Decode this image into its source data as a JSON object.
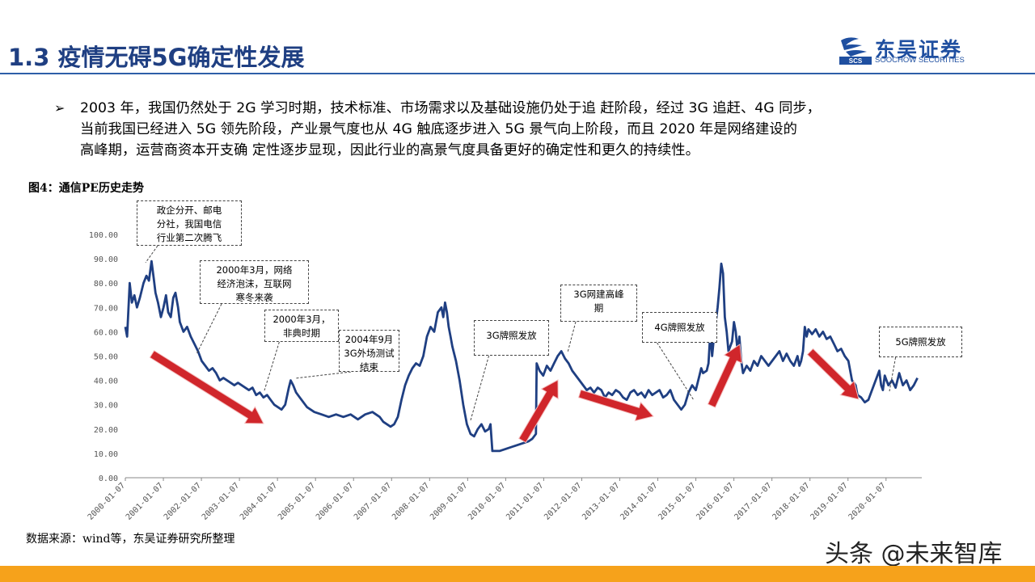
{
  "header": {
    "title": "1.3 疫情无碍5G确定性发展",
    "logo": {
      "name_cn": "东吴证券",
      "name_en": "SOOCHOW SECURITIES",
      "badge": "SCS",
      "icon": "soochow-logo-icon"
    }
  },
  "body": {
    "bullet_icon": "➢",
    "bullet_lines": [
      "2003 年，我国仍然处于 2G 学习时期，技术标准、市场需求以及基础设施仍处于追 赶阶段，经过 3G 追赶、4G 同步，",
      "当前我国已经进入 5G 领先阶段，产业景气度也从 4G 触底逐步进入 5G 景气向上阶段，而且 2020 年是网络建设的",
      "高峰期，运营商资本开支确 定性逐步显现，因此行业的高景气度具备更好的确定性和更久的持续性。"
    ]
  },
  "figure": {
    "title": "图4：通信PE历史走势",
    "source": "数据来源：wind等，东吴证券研究所整理"
  },
  "watermark": "头条 @未来智库",
  "colors": {
    "title": "#1f3f82",
    "line": "#1f3f82",
    "arrow": "#d0262b",
    "footer": "#f6a21b"
  },
  "chart_data": {
    "type": "line",
    "ylim": [
      0,
      100
    ],
    "y_ticks": [
      "0.00",
      "10.00",
      "20.00",
      "30.00",
      "40.00",
      "50.00",
      "60.00",
      "70.00",
      "80.00",
      "90.00",
      "100.00"
    ],
    "x_ticks": [
      "2000-01-07",
      "2001-01-07",
      "2002-01-07",
      "2003-01-07",
      "2004-01-07",
      "2005-01-07",
      "2006-01-07",
      "2007-01-07",
      "2008-01-07",
      "2009-01-07",
      "2010-01-07",
      "2011-01-07",
      "2012-01-07",
      "2013-01-07",
      "2014-01-07",
      "2015-01-07",
      "2016-01-07",
      "2017-01-07",
      "2018-01-07",
      "2019-01-07",
      "2020-01-07"
    ],
    "series": [
      {
        "values": [
          [
            2000.0,
            62
          ],
          [
            2000.05,
            58
          ],
          [
            2000.12,
            80
          ],
          [
            2000.18,
            72
          ],
          [
            2000.25,
            75
          ],
          [
            2000.32,
            70
          ],
          [
            2000.4,
            74
          ],
          [
            2000.5,
            80
          ],
          [
            2000.58,
            83
          ],
          [
            2000.65,
            81
          ],
          [
            2000.72,
            89
          ],
          [
            2000.78,
            82
          ],
          [
            2000.83,
            76
          ],
          [
            2000.9,
            72
          ],
          [
            2000.98,
            66
          ],
          [
            2001.05,
            70
          ],
          [
            2001.12,
            75
          ],
          [
            2001.18,
            68
          ],
          [
            2001.25,
            66
          ],
          [
            2001.32,
            74
          ],
          [
            2001.38,
            76
          ],
          [
            2001.45,
            70
          ],
          [
            2001.5,
            64
          ],
          [
            2001.6,
            60
          ],
          [
            2001.7,
            62
          ],
          [
            2001.8,
            58
          ],
          [
            2001.9,
            55
          ],
          [
            2002.0,
            52
          ],
          [
            2002.1,
            48
          ],
          [
            2002.2,
            46
          ],
          [
            2002.3,
            44
          ],
          [
            2002.4,
            45
          ],
          [
            2002.5,
            43
          ],
          [
            2002.6,
            40
          ],
          [
            2002.7,
            41
          ],
          [
            2002.8,
            40
          ],
          [
            2002.9,
            39
          ],
          [
            2003.0,
            38
          ],
          [
            2003.1,
            39
          ],
          [
            2003.2,
            38
          ],
          [
            2003.3,
            37
          ],
          [
            2003.4,
            36
          ],
          [
            2003.5,
            37
          ],
          [
            2003.6,
            34
          ],
          [
            2003.7,
            35
          ],
          [
            2003.8,
            33
          ],
          [
            2003.9,
            34
          ],
          [
            2004.0,
            32
          ],
          [
            2004.1,
            30
          ],
          [
            2004.2,
            29
          ],
          [
            2004.3,
            28
          ],
          [
            2004.4,
            30
          ],
          [
            2004.5,
            37
          ],
          [
            2004.55,
            40
          ],
          [
            2004.62,
            38
          ],
          [
            2004.7,
            35
          ],
          [
            2004.8,
            33
          ],
          [
            2004.9,
            31
          ],
          [
            2005.0,
            29
          ],
          [
            2005.2,
            27
          ],
          [
            2005.4,
            26
          ],
          [
            2005.6,
            25
          ],
          [
            2005.8,
            26
          ],
          [
            2006.0,
            25
          ],
          [
            2006.2,
            26
          ],
          [
            2006.4,
            24
          ],
          [
            2006.6,
            26
          ],
          [
            2006.8,
            27
          ],
          [
            2007.0,
            25
          ],
          [
            2007.1,
            23
          ],
          [
            2007.2,
            22
          ],
          [
            2007.3,
            21
          ],
          [
            2007.4,
            22
          ],
          [
            2007.5,
            25
          ],
          [
            2007.6,
            32
          ],
          [
            2007.7,
            38
          ],
          [
            2007.8,
            42
          ],
          [
            2007.9,
            45
          ],
          [
            2008.0,
            47
          ],
          [
            2008.1,
            46
          ],
          [
            2008.2,
            50
          ],
          [
            2008.3,
            58
          ],
          [
            2008.4,
            62
          ],
          [
            2008.5,
            60
          ],
          [
            2008.6,
            68
          ],
          [
            2008.7,
            70
          ],
          [
            2008.75,
            66
          ],
          [
            2008.8,
            72
          ],
          [
            2008.85,
            68
          ],
          [
            2008.9,
            62
          ],
          [
            2008.95,
            58
          ],
          [
            2009.0,
            54
          ],
          [
            2009.1,
            48
          ],
          [
            2009.2,
            40
          ],
          [
            2009.3,
            30
          ],
          [
            2009.4,
            22
          ],
          [
            2009.5,
            18
          ],
          [
            2009.6,
            17
          ],
          [
            2009.7,
            20
          ],
          [
            2009.8,
            22
          ],
          [
            2009.9,
            19
          ],
          [
            2010.0,
            20
          ],
          [
            2010.05,
            22
          ],
          [
            2010.1,
            11
          ],
          [
            2010.3,
            11
          ],
          [
            2010.5,
            12
          ],
          [
            2010.7,
            13
          ],
          [
            2010.9,
            14
          ],
          [
            2011.1,
            15
          ],
          [
            2011.2,
            16
          ],
          [
            2011.3,
            18
          ],
          [
            2011.32,
            47
          ],
          [
            2011.4,
            44
          ],
          [
            2011.5,
            42
          ],
          [
            2011.6,
            46
          ],
          [
            2011.7,
            44
          ],
          [
            2011.8,
            47
          ],
          [
            2011.9,
            50
          ],
          [
            2012.0,
            52
          ],
          [
            2012.1,
            49
          ],
          [
            2012.2,
            47
          ],
          [
            2012.3,
            44
          ],
          [
            2012.4,
            42
          ],
          [
            2012.5,
            40
          ],
          [
            2012.6,
            38
          ],
          [
            2012.7,
            36
          ],
          [
            2012.8,
            37
          ],
          [
            2012.9,
            35
          ],
          [
            2013.0,
            37
          ],
          [
            2013.1,
            36
          ],
          [
            2013.2,
            33
          ],
          [
            2013.3,
            35
          ],
          [
            2013.4,
            34
          ],
          [
            2013.5,
            36
          ],
          [
            2013.6,
            35
          ],
          [
            2013.7,
            33
          ],
          [
            2013.8,
            32
          ],
          [
            2013.9,
            35
          ],
          [
            2014.0,
            36
          ],
          [
            2014.1,
            34
          ],
          [
            2014.2,
            35
          ],
          [
            2014.3,
            33
          ],
          [
            2014.4,
            36
          ],
          [
            2014.5,
            34
          ],
          [
            2014.6,
            35
          ],
          [
            2014.7,
            36
          ],
          [
            2014.8,
            33
          ],
          [
            2014.9,
            34
          ],
          [
            2015.0,
            36
          ],
          [
            2015.1,
            32
          ],
          [
            2015.2,
            30
          ],
          [
            2015.3,
            28
          ],
          [
            2015.4,
            30
          ],
          [
            2015.5,
            35
          ],
          [
            2015.6,
            38
          ],
          [
            2015.7,
            36
          ],
          [
            2015.8,
            42
          ],
          [
            2015.85,
            45
          ],
          [
            2015.9,
            43
          ],
          [
            2016.0,
            44
          ],
          [
            2016.05,
            47
          ],
          [
            2016.1,
            60
          ],
          [
            2016.15,
            50
          ],
          [
            2016.2,
            58
          ],
          [
            2016.3,
            70
          ],
          [
            2016.35,
            78
          ],
          [
            2016.4,
            88
          ],
          [
            2016.45,
            84
          ],
          [
            2016.5,
            66
          ],
          [
            2016.55,
            60
          ],
          [
            2016.6,
            52
          ],
          [
            2016.7,
            56
          ],
          [
            2016.75,
            64
          ],
          [
            2016.8,
            60
          ],
          [
            2016.85,
            52
          ],
          [
            2016.9,
            58
          ],
          [
            2016.95,
            48
          ],
          [
            2017.0,
            43
          ],
          [
            2017.1,
            46
          ],
          [
            2017.2,
            44
          ],
          [
            2017.3,
            48
          ],
          [
            2017.4,
            46
          ],
          [
            2017.5,
            50
          ],
          [
            2017.6,
            48
          ],
          [
            2017.7,
            46
          ],
          [
            2017.8,
            48
          ],
          [
            2017.9,
            50
          ],
          [
            2018.0,
            52
          ],
          [
            2018.05,
            50
          ],
          [
            2018.1,
            48
          ],
          [
            2018.2,
            51
          ],
          [
            2018.3,
            48
          ],
          [
            2018.4,
            46
          ],
          [
            2018.5,
            50
          ],
          [
            2018.55,
            46
          ],
          [
            2018.6,
            48
          ],
          [
            2018.65,
            52
          ],
          [
            2018.7,
            62
          ],
          [
            2018.75,
            58
          ],
          [
            2018.8,
            61
          ],
          [
            2018.9,
            59
          ],
          [
            2019.0,
            61
          ],
          [
            2019.1,
            58
          ],
          [
            2019.2,
            60
          ],
          [
            2019.3,
            57
          ],
          [
            2019.4,
            58
          ],
          [
            2019.5,
            55
          ],
          [
            2019.6,
            52
          ],
          [
            2019.7,
            53
          ],
          [
            2019.8,
            50
          ],
          [
            2019.9,
            48
          ],
          [
            2020.0,
            40
          ],
          [
            2020.1,
            38
          ],
          [
            2020.15,
            34
          ],
          [
            2020.25,
            33
          ],
          [
            2020.35,
            31
          ],
          [
            2020.45,
            32
          ],
          [
            2020.55,
            36
          ],
          [
            2020.65,
            40
          ],
          [
            2020.75,
            44
          ],
          [
            2020.8,
            38
          ],
          [
            2020.85,
            36
          ],
          [
            2020.9,
            42
          ],
          [
            2020.95,
            40
          ],
          [
            2021.0,
            38
          ],
          [
            2021.1,
            40
          ],
          [
            2021.2,
            37
          ],
          [
            2021.3,
            43
          ],
          [
            2021.4,
            38
          ],
          [
            2021.5,
            40
          ],
          [
            2021.6,
            36
          ],
          [
            2021.7,
            38
          ],
          [
            2021.8,
            41
          ]
        ]
      }
    ],
    "annotations": [
      {
        "lines": [
          "政企分开、邮电",
          "分社，我国电信",
          "行业第二次腾飞"
        ]
      },
      {
        "lines": [
          "2000年3月，网络",
          "经济泡沫，互联网",
          "寒冬来袭"
        ]
      },
      {
        "lines": [
          "2000年3月，",
          "非典时期"
        ]
      },
      {
        "lines": [
          "2004年9月",
          "3G外场测试",
          "结束"
        ]
      },
      {
        "lines": [
          "3G牌照发放"
        ]
      },
      {
        "lines": [
          "3G网建高峰",
          "期"
        ]
      },
      {
        "lines": [
          "4G牌照发放"
        ]
      },
      {
        "lines": [
          "5G牌照发放"
        ]
      }
    ]
  }
}
